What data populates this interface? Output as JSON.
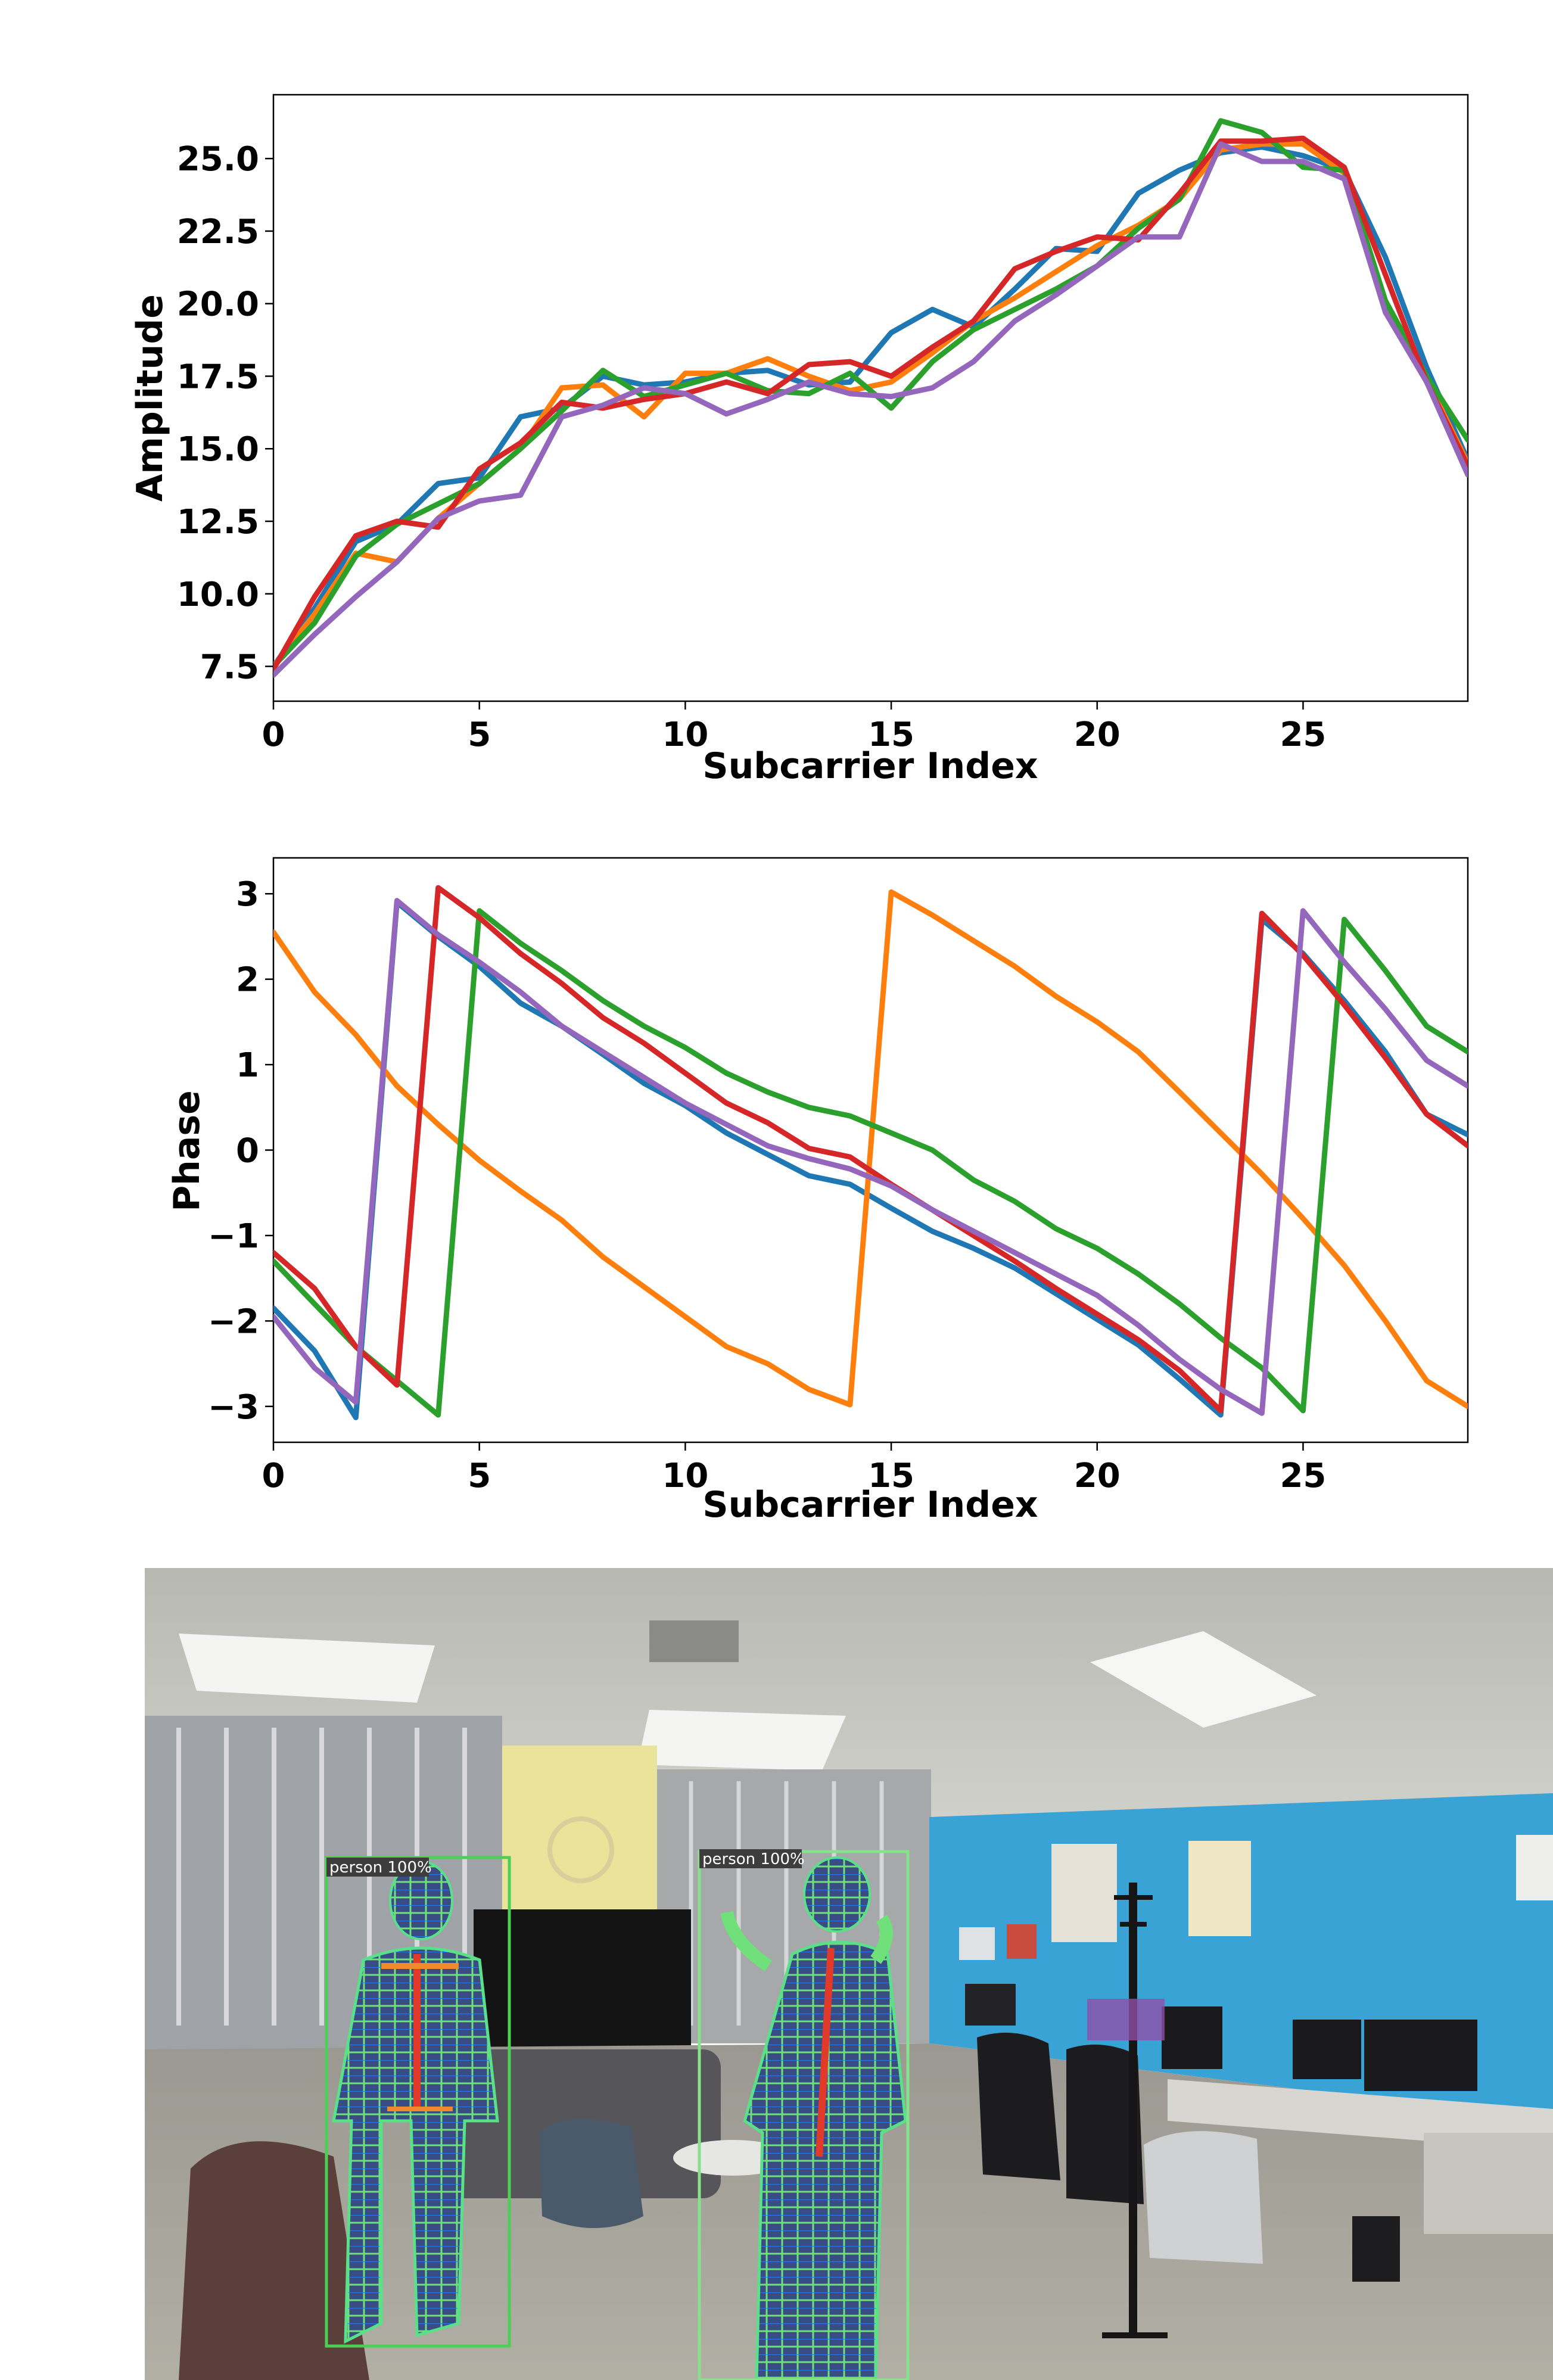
{
  "chart_data": [
    {
      "type": "line",
      "title": "",
      "xlabel": "Subcarrier Index",
      "ylabel": "Amplitude",
      "xlim": [
        0,
        29
      ],
      "ylim": [
        6.3,
        27.2
      ],
      "xticks": [
        0,
        5,
        10,
        15,
        20,
        25
      ],
      "xtick_labels": [
        "0",
        "5",
        "10",
        "15",
        "20",
        "25"
      ],
      "yticks": [
        7.5,
        10.0,
        12.5,
        15.0,
        17.5,
        20.0,
        22.5,
        25.0
      ],
      "ytick_labels": [
        "7.5",
        "10.0",
        "12.5",
        "15.0",
        "17.5",
        "20.0",
        "22.5",
        "25.0"
      ],
      "grid": false,
      "x": [
        0,
        1,
        2,
        3,
        4,
        5,
        6,
        7,
        8,
        9,
        10,
        11,
        12,
        13,
        14,
        15,
        16,
        17,
        18,
        19,
        20,
        21,
        22,
        23,
        24,
        25,
        26,
        27,
        28,
        29
      ],
      "series": [
        {
          "color": "#1f77b4",
          "values": [
            7.5,
            9.5,
            11.8,
            12.4,
            13.8,
            14.0,
            16.1,
            16.4,
            17.5,
            17.2,
            17.3,
            17.6,
            17.7,
            17.2,
            17.3,
            19.0,
            19.8,
            19.2,
            20.5,
            21.9,
            21.8,
            23.8,
            24.6,
            25.2,
            25.4,
            25.1,
            24.6,
            21.6,
            17.8,
            14.6
          ]
        },
        {
          "color": "#ff7f0e",
          "values": [
            7.5,
            9.3,
            11.4,
            11.1,
            12.6,
            13.8,
            15.0,
            17.1,
            17.2,
            16.1,
            17.6,
            17.6,
            18.1,
            17.5,
            17.0,
            17.3,
            18.3,
            19.4,
            20.2,
            21.1,
            22.0,
            22.7,
            23.6,
            25.3,
            25.5,
            25.5,
            24.5,
            20.0,
            17.4,
            14.5
          ]
        },
        {
          "color": "#2ca02c",
          "values": [
            7.5,
            9.0,
            11.3,
            12.4,
            13.1,
            13.8,
            15.0,
            16.3,
            17.7,
            16.8,
            17.2,
            17.6,
            17.0,
            16.9,
            17.6,
            16.4,
            18.0,
            19.1,
            19.8,
            20.5,
            21.3,
            22.6,
            23.6,
            26.3,
            25.9,
            24.7,
            24.6,
            20.1,
            17.5,
            15.3
          ]
        },
        {
          "color": "#d62728",
          "values": [
            7.4,
            9.9,
            12.0,
            12.5,
            12.3,
            14.3,
            15.2,
            16.6,
            16.4,
            16.7,
            16.9,
            17.3,
            16.9,
            17.9,
            18.0,
            17.5,
            18.5,
            19.4,
            21.2,
            21.8,
            22.3,
            22.2,
            23.8,
            25.6,
            25.6,
            25.7,
            24.7,
            21.0,
            17.3,
            14.4
          ]
        },
        {
          "color": "#9467bd",
          "values": [
            7.2,
            8.6,
            9.9,
            11.1,
            12.6,
            13.2,
            13.4,
            16.1,
            16.5,
            17.1,
            16.9,
            16.2,
            16.7,
            17.3,
            16.9,
            16.8,
            17.1,
            18.0,
            19.4,
            20.3,
            21.3,
            22.3,
            22.3,
            25.5,
            24.9,
            24.9,
            24.3,
            19.7,
            17.3,
            14.1
          ]
        }
      ]
    },
    {
      "type": "line",
      "title": "",
      "xlabel": "Subcarrier Index",
      "ylabel": "Phase",
      "xlim": [
        0,
        29
      ],
      "ylim": [
        -3.42,
        3.42
      ],
      "xticks": [
        0,
        5,
        10,
        15,
        20,
        25
      ],
      "xtick_labels": [
        "0",
        "5",
        "10",
        "15",
        "20",
        "25"
      ],
      "yticks": [
        -3,
        -2,
        -1,
        0,
        1,
        2,
        3
      ],
      "ytick_labels": [
        "−3",
        "−2",
        "−1",
        "0",
        "1",
        "2",
        "3"
      ],
      "grid": false,
      "x": [
        0,
        1,
        2,
        3,
        4,
        5,
        6,
        7,
        8,
        9,
        10,
        11,
        12,
        13,
        14,
        15,
        16,
        17,
        18,
        19,
        20,
        21,
        22,
        23,
        24,
        25,
        26,
        27,
        28,
        29
      ],
      "series": [
        {
          "color": "#1f77b4",
          "values": [
            -1.85,
            -2.35,
            -3.13,
            2.9,
            2.5,
            2.15,
            1.72,
            1.45,
            1.12,
            0.78,
            0.52,
            0.2,
            -0.05,
            -0.3,
            -0.4,
            -0.68,
            -0.95,
            -1.15,
            -1.38,
            -1.68,
            -1.98,
            -2.28,
            -2.68,
            -3.1,
            2.7,
            2.3,
            1.75,
            1.15,
            0.42,
            0.18
          ]
        },
        {
          "color": "#ff7f0e",
          "values": [
            2.55,
            1.85,
            1.35,
            0.75,
            0.3,
            -0.12,
            -0.48,
            -0.82,
            -1.25,
            -1.6,
            -1.95,
            -2.3,
            -2.5,
            -2.8,
            -2.98,
            3.02,
            2.75,
            2.45,
            2.15,
            1.8,
            1.5,
            1.15,
            0.68,
            0.2,
            -0.28,
            -0.8,
            -1.35,
            -2.0,
            -2.7,
            -3.0
          ]
        },
        {
          "color": "#2ca02c",
          "values": [
            -1.3,
            -1.8,
            -2.3,
            -2.7,
            -3.1,
            2.8,
            2.42,
            2.1,
            1.75,
            1.45,
            1.2,
            0.9,
            0.68,
            0.5,
            0.4,
            0.2,
            0.0,
            -0.35,
            -0.6,
            -0.92,
            -1.15,
            -1.45,
            -1.8,
            -2.2,
            -2.55,
            -3.05,
            2.7,
            2.1,
            1.45,
            1.15
          ]
        },
        {
          "color": "#d62728",
          "values": [
            -1.2,
            -1.62,
            -2.3,
            -2.75,
            3.07,
            2.72,
            2.3,
            1.95,
            1.55,
            1.25,
            0.9,
            0.55,
            0.32,
            0.02,
            -0.08,
            -0.4,
            -0.7,
            -1.0,
            -1.3,
            -1.62,
            -1.92,
            -2.22,
            -2.58,
            -3.05,
            2.77,
            2.28,
            1.7,
            1.08,
            0.42,
            0.05
          ]
        },
        {
          "color": "#9467bd",
          "values": [
            -1.95,
            -2.55,
            -2.95,
            2.92,
            2.52,
            2.2,
            1.85,
            1.45,
            1.15,
            0.85,
            0.55,
            0.3,
            0.05,
            -0.1,
            -0.22,
            -0.42,
            -0.7,
            -0.95,
            -1.2,
            -1.45,
            -1.7,
            -2.05,
            -2.45,
            -2.8,
            -3.08,
            2.8,
            2.2,
            1.65,
            1.05,
            0.75
          ]
        }
      ]
    }
  ],
  "photo": {
    "detections": [
      {
        "label": "person 100%"
      },
      {
        "label": "person 100%"
      }
    ]
  }
}
